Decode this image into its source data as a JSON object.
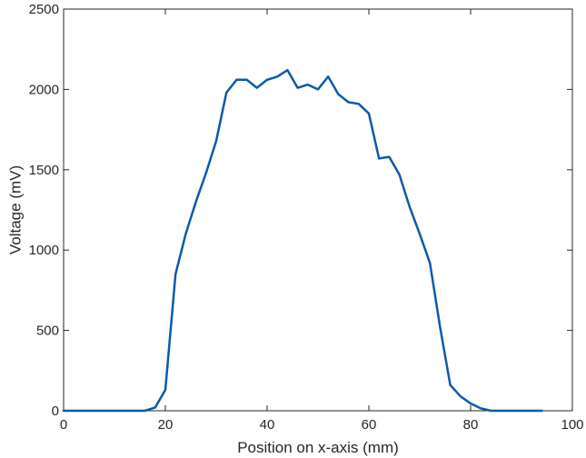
{
  "chart_data": {
    "type": "line",
    "title": "",
    "xlabel": "Position on x-axis (mm)",
    "ylabel": "Voltage (mV)",
    "xlim": [
      0,
      100
    ],
    "ylim": [
      0,
      2500
    ],
    "xticks": [
      0,
      20,
      40,
      60,
      80,
      100
    ],
    "yticks": [
      0,
      500,
      1000,
      1500,
      2000,
      2500
    ],
    "xtick_labels": [
      "0",
      "20",
      "40",
      "60",
      "80",
      "100"
    ],
    "ytick_labels": [
      "0",
      "500",
      "1000",
      "1500",
      "2000",
      "2500"
    ],
    "grid": false,
    "legend": "none",
    "series": [
      {
        "color": "#0b5aa8",
        "x": [
          0,
          2,
          4,
          6,
          8,
          10,
          12,
          14,
          16,
          18,
          20,
          22,
          24,
          26,
          28,
          30,
          32,
          34,
          36,
          38,
          40,
          42,
          44,
          46,
          48,
          50,
          52,
          54,
          56,
          58,
          60,
          62,
          64,
          66,
          68,
          70,
          72,
          74,
          76,
          78,
          80,
          82,
          84,
          86,
          88,
          90,
          92,
          94
        ],
        "y": [
          0,
          0,
          0,
          0,
          0,
          0,
          0,
          0,
          0,
          20,
          130,
          850,
          1100,
          1300,
          1480,
          1680,
          1980,
          2060,
          2060,
          2010,
          2060,
          2080,
          2120,
          2010,
          2030,
          2000,
          2080,
          1970,
          1920,
          1910,
          1850,
          1570,
          1580,
          1470,
          1270,
          1100,
          920,
          520,
          160,
          90,
          45,
          15,
          0,
          0,
          0,
          0,
          0,
          0
        ]
      }
    ]
  }
}
